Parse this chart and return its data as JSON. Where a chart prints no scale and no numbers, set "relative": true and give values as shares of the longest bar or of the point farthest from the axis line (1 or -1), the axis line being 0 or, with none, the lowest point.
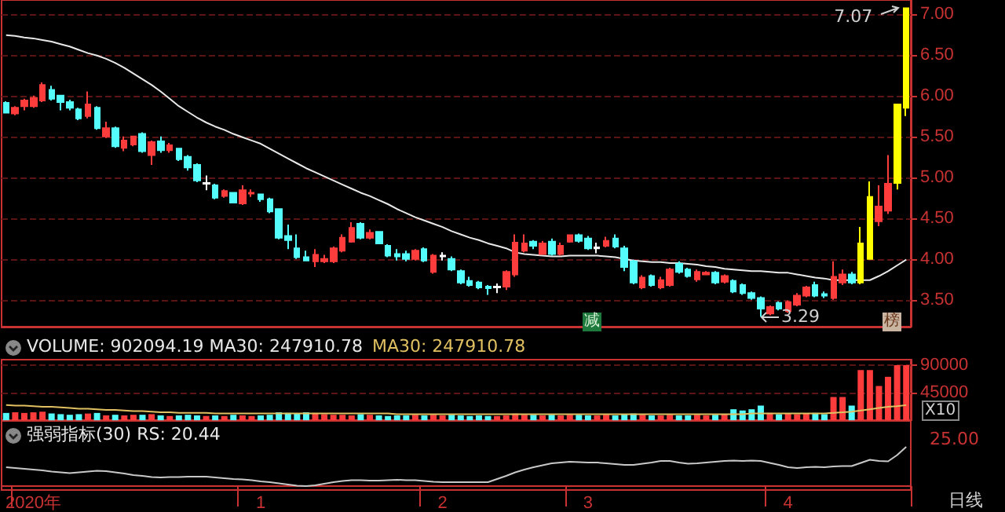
{
  "chart_data": [
    {
      "type": "candlestick",
      "categories": [
        null,
        null,
        null,
        null,
        null,
        null,
        null,
        null,
        null,
        null,
        null,
        null,
        null,
        null,
        null,
        null,
        null,
        null,
        null,
        null,
        null,
        null,
        null,
        null,
        null,
        null,
        null,
        null,
        null,
        null,
        null,
        null,
        null,
        null,
        null,
        null,
        null,
        null,
        null,
        null,
        null,
        null,
        null,
        null,
        null,
        null,
        null,
        null,
        null,
        null,
        null,
        null,
        null,
        null,
        null,
        null,
        null,
        null,
        null,
        null,
        null,
        null,
        null,
        null,
        null,
        null,
        null,
        null,
        null,
        null,
        null,
        null,
        null,
        null,
        null,
        null,
        null,
        null,
        null,
        null,
        null,
        null,
        null,
        null,
        null,
        null,
        null,
        null,
        null,
        null,
        null,
        null,
        null,
        null,
        null,
        null,
        null,
        null,
        null,
        null
      ],
      "ohlc": [
        [
          5.91,
          5.93,
          5.78,
          5.79
        ],
        [
          5.78,
          5.87,
          5.76,
          5.85
        ],
        [
          5.87,
          5.96,
          5.82,
          5.94
        ],
        [
          5.87,
          6.0,
          5.85,
          5.97
        ],
        [
          5.94,
          6.16,
          5.92,
          6.13
        ],
        [
          6.07,
          6.12,
          5.94,
          5.96
        ],
        [
          6.0,
          6.0,
          5.82,
          5.92
        ],
        [
          5.92,
          5.95,
          5.82,
          5.85
        ],
        [
          5.83,
          5.85,
          5.7,
          5.72
        ],
        [
          5.75,
          6.05,
          5.72,
          5.89
        ],
        [
          5.85,
          5.87,
          5.58,
          5.6
        ],
        [
          5.5,
          5.68,
          5.48,
          5.6
        ],
        [
          5.6,
          5.62,
          5.36,
          5.38
        ],
        [
          5.36,
          5.5,
          5.32,
          5.45
        ],
        [
          5.4,
          5.5,
          5.38,
          5.5
        ],
        [
          5.53,
          5.55,
          5.3,
          5.32
        ],
        [
          5.27,
          5.45,
          5.15,
          5.43
        ],
        [
          5.44,
          5.5,
          5.3,
          5.33
        ],
        [
          5.33,
          5.42,
          5.3,
          5.39
        ],
        [
          5.35,
          5.36,
          5.2,
          5.22
        ],
        [
          5.25,
          5.27,
          5.08,
          5.12
        ],
        [
          5.15,
          5.17,
          4.94,
          4.96
        ],
        [
          4.93,
          5.02,
          4.84,
          4.92
        ],
        [
          4.9,
          4.92,
          4.73,
          4.75
        ],
        [
          4.77,
          4.85,
          4.75,
          4.83
        ],
        [
          4.81,
          4.82,
          4.68,
          4.69
        ],
        [
          4.68,
          4.9,
          4.66,
          4.84
        ],
        [
          4.8,
          4.85,
          4.76,
          4.81
        ],
        [
          4.79,
          4.8,
          4.7,
          4.73
        ],
        [
          4.73,
          4.75,
          4.56,
          4.58
        ],
        [
          4.61,
          4.62,
          4.24,
          4.26
        ],
        [
          4.28,
          4.42,
          4.12,
          4.23
        ],
        [
          4.13,
          4.3,
          4.0,
          4.02
        ],
        [
          4.02,
          4.1,
          3.97,
          3.98
        ],
        [
          3.97,
          4.12,
          3.9,
          4.05
        ],
        [
          3.97,
          4.05,
          3.95,
          4.0
        ],
        [
          3.97,
          4.15,
          3.95,
          4.13
        ],
        [
          4.1,
          4.3,
          4.08,
          4.26
        ],
        [
          4.21,
          4.45,
          4.2,
          4.38
        ],
        [
          4.43,
          4.45,
          4.24,
          4.26
        ],
        [
          4.26,
          4.36,
          4.24,
          4.32
        ],
        [
          4.33,
          4.34,
          4.18,
          4.19
        ],
        [
          4.16,
          4.18,
          4.02,
          4.04
        ],
        [
          4.06,
          4.12,
          3.98,
          4.03
        ],
        [
          4.06,
          4.1,
          3.97,
          4.0
        ],
        [
          4.0,
          4.12,
          3.98,
          4.1
        ],
        [
          4.12,
          4.14,
          3.96,
          3.98
        ],
        [
          3.84,
          4.06,
          3.82,
          4.04
        ],
        [
          4.03,
          4.08,
          3.98,
          4.04
        ],
        [
          4.0,
          4.03,
          3.85,
          3.87
        ],
        [
          3.85,
          3.87,
          3.69,
          3.71
        ],
        [
          3.73,
          3.78,
          3.66,
          3.68
        ],
        [
          3.71,
          3.73,
          3.63,
          3.65
        ],
        [
          3.66,
          3.68,
          3.56,
          3.64
        ],
        [
          3.65,
          3.7,
          3.58,
          3.66
        ],
        [
          3.66,
          3.86,
          3.62,
          3.84
        ],
        [
          3.81,
          4.3,
          3.78,
          4.2
        ],
        [
          4.1,
          4.3,
          4.08,
          4.19
        ],
        [
          4.21,
          4.23,
          4.12,
          4.16
        ],
        [
          4.06,
          4.22,
          4.05,
          4.19
        ],
        [
          4.21,
          4.25,
          4.04,
          4.06
        ],
        [
          4.06,
          4.2,
          4.04,
          4.16
        ],
        [
          4.21,
          4.3,
          4.2,
          4.29
        ],
        [
          4.29,
          4.31,
          4.2,
          4.22
        ],
        [
          4.25,
          4.28,
          4.11,
          4.13
        ],
        [
          4.13,
          4.2,
          4.07,
          4.14
        ],
        [
          4.16,
          4.27,
          4.14,
          4.22
        ],
        [
          4.25,
          4.3,
          4.13,
          4.15
        ],
        [
          4.13,
          4.16,
          3.85,
          3.9
        ],
        [
          3.97,
          3.99,
          3.69,
          3.71
        ],
        [
          3.65,
          3.8,
          3.63,
          3.77
        ],
        [
          3.79,
          3.81,
          3.66,
          3.68
        ],
        [
          3.65,
          3.78,
          3.63,
          3.74
        ],
        [
          3.68,
          3.89,
          3.66,
          3.87
        ],
        [
          3.94,
          3.97,
          3.82,
          3.84
        ],
        [
          3.87,
          3.89,
          3.77,
          3.79
        ],
        [
          3.75,
          3.87,
          3.72,
          3.84
        ],
        [
          3.81,
          3.85,
          3.8,
          3.83
        ],
        [
          3.83,
          3.85,
          3.69,
          3.71
        ],
        [
          3.72,
          3.81,
          3.7,
          3.79
        ],
        [
          3.73,
          3.75,
          3.58,
          3.6
        ],
        [
          3.68,
          3.7,
          3.56,
          3.58
        ],
        [
          3.58,
          3.6,
          3.5,
          3.52
        ],
        [
          3.52,
          3.54,
          3.29,
          3.39
        ],
        [
          3.33,
          3.43,
          3.31,
          3.41
        ],
        [
          3.46,
          3.48,
          3.37,
          3.39
        ],
        [
          3.36,
          3.49,
          3.34,
          3.47
        ],
        [
          3.44,
          3.58,
          3.42,
          3.55
        ],
        [
          3.55,
          3.67,
          3.53,
          3.65
        ],
        [
          3.68,
          3.72,
          3.53,
          3.55
        ],
        [
          3.57,
          3.6,
          3.52,
          3.55
        ],
        [
          3.52,
          3.97,
          3.5,
          3.78
        ],
        [
          3.71,
          3.87,
          3.68,
          3.81
        ],
        [
          3.81,
          3.84,
          3.69,
          3.71
        ],
        [
          3.71,
          4.39,
          3.69,
          4.19
        ],
        [
          4.0,
          4.95,
          4.0,
          4.76
        ],
        [
          4.46,
          4.9,
          4.4,
          4.64
        ],
        [
          4.59,
          5.27,
          4.55,
          4.92
        ],
        [
          4.93,
          5.9,
          4.85,
          5.89
        ],
        [
          5.85,
          7.07,
          5.75,
          7.07
        ]
      ],
      "colors": [
        "#54fcfc",
        "#ff3c3c",
        "#ff3c3c",
        "#ff3c3c",
        "#ff3c3c",
        "#54fcfc",
        "#54fcfc",
        "#54fcfc",
        "#54fcfc",
        "#ff3c3c",
        "#54fcfc",
        "#ff3c3c",
        "#54fcfc",
        "#ff3c3c",
        "#ff3c3c",
        "#54fcfc",
        "#ff3c3c",
        "#54fcfc",
        "#ff3c3c",
        "#54fcfc",
        "#54fcfc",
        "#54fcfc",
        "#ffffff",
        "#54fcfc",
        "#ff3c3c",
        "#54fcfc",
        "#ff3c3c",
        "#ff3c3c",
        "#54fcfc",
        "#54fcfc",
        "#54fcfc",
        "#54fcfc",
        "#54fcfc",
        "#54fcfc",
        "#ff3c3c",
        "#ff3c3c",
        "#ff3c3c",
        "#ff3c3c",
        "#ff3c3c",
        "#54fcfc",
        "#ff3c3c",
        "#54fcfc",
        "#54fcfc",
        "#54fcfc",
        "#54fcfc",
        "#ff3c3c",
        "#54fcfc",
        "#ff3c3c",
        "#ffffff",
        "#54fcfc",
        "#54fcfc",
        "#54fcfc",
        "#54fcfc",
        "#54fcfc",
        "#ffffff",
        "#ff3c3c",
        "#ff3c3c",
        "#ff3c3c",
        "#54fcfc",
        "#ff3c3c",
        "#54fcfc",
        "#ff3c3c",
        "#ff3c3c",
        "#54fcfc",
        "#54fcfc",
        "#ffffff",
        "#ff3c3c",
        "#54fcfc",
        "#54fcfc",
        "#54fcfc",
        "#ff3c3c",
        "#54fcfc",
        "#ff3c3c",
        "#ff3c3c",
        "#54fcfc",
        "#54fcfc",
        "#ff3c3c",
        "#ff3c3c",
        "#54fcfc",
        "#ff3c3c",
        "#54fcfc",
        "#54fcfc",
        "#54fcfc",
        "#54fcfc",
        "#ff3c3c",
        "#54fcfc",
        "#ff3c3c",
        "#ff3c3c",
        "#ff3c3c",
        "#54fcfc",
        "#54fcfc",
        "#ff3c3c",
        "#ff3c3c",
        "#54fcfc",
        "#ffff00",
        "#ffff00",
        "#ff3c3c",
        "#ff3c3c",
        "#ffff00",
        "#ffff00"
      ],
      "series": [
        {
          "type": "line",
          "color": "#e8e8e8",
          "values": [
            6.74,
            6.73,
            6.71,
            6.7,
            6.68,
            6.66,
            6.63,
            6.6,
            6.56,
            6.52,
            6.49,
            6.45,
            6.4,
            6.34,
            6.27,
            6.2,
            6.13,
            6.05,
            5.96,
            5.87,
            5.8,
            5.73,
            5.67,
            5.62,
            5.58,
            5.53,
            5.49,
            5.45,
            5.41,
            5.35,
            5.29,
            5.23,
            5.17,
            5.11,
            5.06,
            5.01,
            4.96,
            4.91,
            4.86,
            4.81,
            4.77,
            4.72,
            4.67,
            4.61,
            4.56,
            4.51,
            4.47,
            4.43,
            4.39,
            4.34,
            4.3,
            4.26,
            4.23,
            4.19,
            4.16,
            4.13,
            4.08,
            4.06,
            4.05,
            4.04,
            4.03,
            4.03,
            4.04,
            4.04,
            4.04,
            4.04,
            4.03,
            4.02,
            4.0,
            3.98,
            3.97,
            3.96,
            3.96,
            3.95,
            3.95,
            3.94,
            3.93,
            3.91,
            3.9,
            3.88,
            3.87,
            3.86,
            3.85,
            3.85,
            3.84,
            3.83,
            3.83,
            3.81,
            3.79,
            3.77,
            3.76,
            3.74,
            3.74,
            3.74,
            3.74,
            3.74,
            3.79,
            3.85,
            3.92,
            3.99
          ]
        }
      ],
      "ylim": [
        3.17,
        7.17
      ],
      "yticks": [
        {
          "value": 3.5,
          "label": "3.50"
        },
        {
          "value": 4,
          "label": "4.00"
        },
        {
          "value": 4.5,
          "label": "4.50"
        },
        {
          "value": 5,
          "label": "5.00"
        },
        {
          "value": 5.5,
          "label": "5.50"
        },
        {
          "value": 6,
          "label": "6.00"
        },
        {
          "value": 6.5,
          "label": "6.50"
        },
        {
          "value": 7,
          "label": "7.00"
        }
      ],
      "grid": "y",
      "tick_labels": "y",
      "annotations": [
        "7.07",
        "3.29",
        "减",
        "榜"
      ]
    },
    {
      "type": "bar",
      "title": "VOLUME: 902094.19  MA30: 247910.78",
      "subtitle": "MA30: 247910.78",
      "categories": [
        null,
        null,
        null,
        null,
        null,
        null,
        null,
        null,
        null,
        null,
        null,
        null,
        null,
        null,
        null,
        null,
        null,
        null,
        null,
        null,
        null,
        null,
        null,
        null,
        null,
        null,
        null,
        null,
        null,
        null,
        null,
        null,
        null,
        null,
        null,
        null,
        null,
        null,
        null,
        null,
        null,
        null,
        null,
        null,
        null,
        null,
        null,
        null,
        null,
        null,
        null,
        null,
        null,
        null,
        null,
        null,
        null,
        null,
        null,
        null,
        null,
        null,
        null,
        null,
        null,
        null,
        null,
        null,
        null,
        null,
        null,
        null,
        null,
        null,
        null,
        null,
        null,
        null,
        null,
        null,
        null,
        null,
        null,
        null,
        null,
        null,
        null,
        null,
        null,
        null,
        null,
        null,
        null,
        null,
        null,
        null,
        null,
        null,
        null,
        null
      ],
      "series": [
        {
          "type": "bar",
          "values": [
            12000,
            13000,
            12000,
            13000,
            14000,
            11000,
            10000,
            9000,
            10000,
            11000,
            12000,
            8000,
            9000,
            8000,
            9000,
            9000,
            10000,
            8000,
            7000,
            8000,
            9000,
            8000,
            7000,
            8000,
            7000,
            9000,
            8000,
            7000,
            8000,
            9000,
            13000,
            12000,
            11000,
            13000,
            12000,
            10000,
            9000,
            9000,
            8000,
            10000,
            9000,
            8000,
            7000,
            8000,
            8000,
            9000,
            8000,
            9000,
            8000,
            9000,
            8000,
            7000,
            8000,
            7000,
            7000,
            8000,
            11000,
            9000,
            9000,
            8000,
            9000,
            8000,
            9000,
            9000,
            8000,
            8000,
            9000,
            8000,
            10000,
            11000,
            9000,
            8000,
            8000,
            9000,
            8000,
            8000,
            9000,
            8000,
            9000,
            10000,
            18000,
            16000,
            18000,
            24000,
            12000,
            10000,
            11000,
            10000,
            11000,
            12000,
            10000,
            38000,
            38000,
            24000,
            82000,
            82000,
            56000,
            71000,
            90000,
            90209
          ],
          "colors": [
            "#54fcfc",
            "#ff3c3c",
            "#ff3c3c",
            "#ff3c3c",
            "#ff3c3c",
            "#54fcfc",
            "#54fcfc",
            "#54fcfc",
            "#54fcfc",
            "#ff3c3c",
            "#54fcfc",
            "#ff3c3c",
            "#54fcfc",
            "#ff3c3c",
            "#ff3c3c",
            "#54fcfc",
            "#ff3c3c",
            "#54fcfc",
            "#ff3c3c",
            "#54fcfc",
            "#54fcfc",
            "#54fcfc",
            "#ff3c3c",
            "#54fcfc",
            "#ff3c3c",
            "#54fcfc",
            "#ff3c3c",
            "#ff3c3c",
            "#54fcfc",
            "#54fcfc",
            "#54fcfc",
            "#54fcfc",
            "#54fcfc",
            "#54fcfc",
            "#ff3c3c",
            "#ff3c3c",
            "#ff3c3c",
            "#ff3c3c",
            "#ff3c3c",
            "#54fcfc",
            "#ff3c3c",
            "#54fcfc",
            "#54fcfc",
            "#54fcfc",
            "#54fcfc",
            "#ff3c3c",
            "#54fcfc",
            "#ff3c3c",
            "#ff3c3c",
            "#54fcfc",
            "#54fcfc",
            "#54fcfc",
            "#54fcfc",
            "#54fcfc",
            "#ff3c3c",
            "#ff3c3c",
            "#ff3c3c",
            "#ff3c3c",
            "#54fcfc",
            "#ff3c3c",
            "#54fcfc",
            "#ff3c3c",
            "#ff3c3c",
            "#54fcfc",
            "#54fcfc",
            "#ff3c3c",
            "#ff3c3c",
            "#54fcfc",
            "#54fcfc",
            "#54fcfc",
            "#ff3c3c",
            "#54fcfc",
            "#ff3c3c",
            "#ff3c3c",
            "#54fcfc",
            "#54fcfc",
            "#ff3c3c",
            "#ff3c3c",
            "#54fcfc",
            "#ff3c3c",
            "#54fcfc",
            "#54fcfc",
            "#54fcfc",
            "#54fcfc",
            "#ff3c3c",
            "#54fcfc",
            "#ff3c3c",
            "#ff3c3c",
            "#ff3c3c",
            "#54fcfc",
            "#54fcfc",
            "#ff3c3c",
            "#ff3c3c",
            "#54fcfc",
            "#ff3c3c",
            "#ff3c3c",
            "#ff3c3c",
            "#ff3c3c",
            "#ff3c3c",
            "#ff3c3c"
          ]
        },
        {
          "type": "line",
          "color": "#e0c060",
          "values": [
            25000,
            24000,
            24000,
            23000,
            22000,
            22000,
            21000,
            20000,
            19000,
            19000,
            18000,
            17000,
            17000,
            16000,
            15000,
            15000,
            14000,
            13000,
            13000,
            12000,
            12000,
            12000,
            12000,
            11000,
            11000,
            11000,
            11000,
            11000,
            11000,
            11000,
            11000,
            11000,
            11000,
            11000,
            11000,
            11000,
            11000,
            11000,
            11000,
            11000,
            11000,
            11000,
            11000,
            10000,
            10000,
            10000,
            10000,
            10000,
            10000,
            10000,
            10000,
            10000,
            10000,
            10000,
            10000,
            10000,
            10000,
            10000,
            10000,
            10000,
            10000,
            10000,
            10000,
            10000,
            10000,
            10000,
            10000,
            10000,
            10000,
            10000,
            10000,
            10000,
            10000,
            10000,
            10000,
            10000,
            10000,
            10000,
            10000,
            10000,
            10000,
            10000,
            11000,
            11000,
            11000,
            11000,
            11000,
            11000,
            11000,
            11000,
            11000,
            12000,
            13000,
            14000,
            16000,
            18000,
            20000,
            22000,
            23000,
            24791
          ]
        }
      ],
      "ylim": [
        0,
        99000
      ],
      "yticks": [
        45000,
        90000
      ],
      "grid": "y",
      "tick_labels": "y",
      "annotations": [
        "X10"
      ]
    },
    {
      "type": "line",
      "title": "强弱指标(30) RS: 20.44",
      "color": "#c8c8c8",
      "relative": true,
      "categories": [
        null,
        null,
        null,
        "2020年",
        null,
        null,
        null,
        null,
        null,
        null,
        null,
        null,
        null,
        null,
        null,
        null,
        null,
        null,
        null,
        null,
        null,
        null,
        null,
        null,
        null,
        null,
        null,
        null,
        "1",
        null,
        null,
        null,
        null,
        null,
        null,
        null,
        null,
        null,
        null,
        null,
        null,
        null,
        null,
        null,
        null,
        null,
        null,
        null,
        "2",
        null,
        null,
        null,
        null,
        null,
        null,
        null,
        null,
        null,
        null,
        null,
        null,
        null,
        null,
        null,
        "3",
        null,
        null,
        null,
        null,
        null,
        null,
        null,
        null,
        null,
        null,
        null,
        null,
        null,
        null,
        null,
        null,
        null,
        null,
        null,
        null,
        null,
        "4",
        null,
        null,
        null,
        null,
        null,
        null,
        null,
        null,
        null,
        null,
        null,
        null,
        null
      ],
      "values": [
        0.48,
        0.46,
        0.44,
        0.42,
        0.4,
        0.37,
        0.35,
        0.33,
        0.35,
        0.37,
        0.39,
        0.38,
        0.35,
        0.32,
        0.28,
        0.26,
        0.23,
        0.22,
        0.23,
        0.23,
        0.24,
        0.24,
        0.24,
        0.22,
        0.2,
        0.18,
        0.17,
        0.15,
        0.12,
        0.1,
        0.07,
        0.04,
        0.01,
        0,
        0.02,
        0.06,
        0.1,
        0.13,
        0.15,
        0.15,
        0.14,
        0.14,
        0.15,
        0.16,
        0.15,
        0.15,
        0.13,
        0.11,
        0.1,
        0.1,
        0.1,
        0.1,
        0.1,
        0.1,
        0.18,
        0.26,
        0.35,
        0.42,
        0.48,
        0.53,
        0.58,
        0.6,
        0.62,
        0.61,
        0.6,
        0.6,
        0.58,
        0.56,
        0.54,
        0.54,
        0.57,
        0.6,
        0.64,
        0.64,
        0.6,
        0.57,
        0.58,
        0.6,
        0.62,
        0.64,
        0.65,
        0.64,
        0.65,
        0.64,
        0.59,
        0.54,
        0.48,
        0.46,
        0.48,
        0.49,
        0.48,
        0.5,
        0.51,
        0.51,
        0.59,
        0.67,
        0.64,
        0.63,
        0.79,
        1
      ],
      "annotations": [
        "25.00",
        "日线"
      ]
    }
  ]
}
